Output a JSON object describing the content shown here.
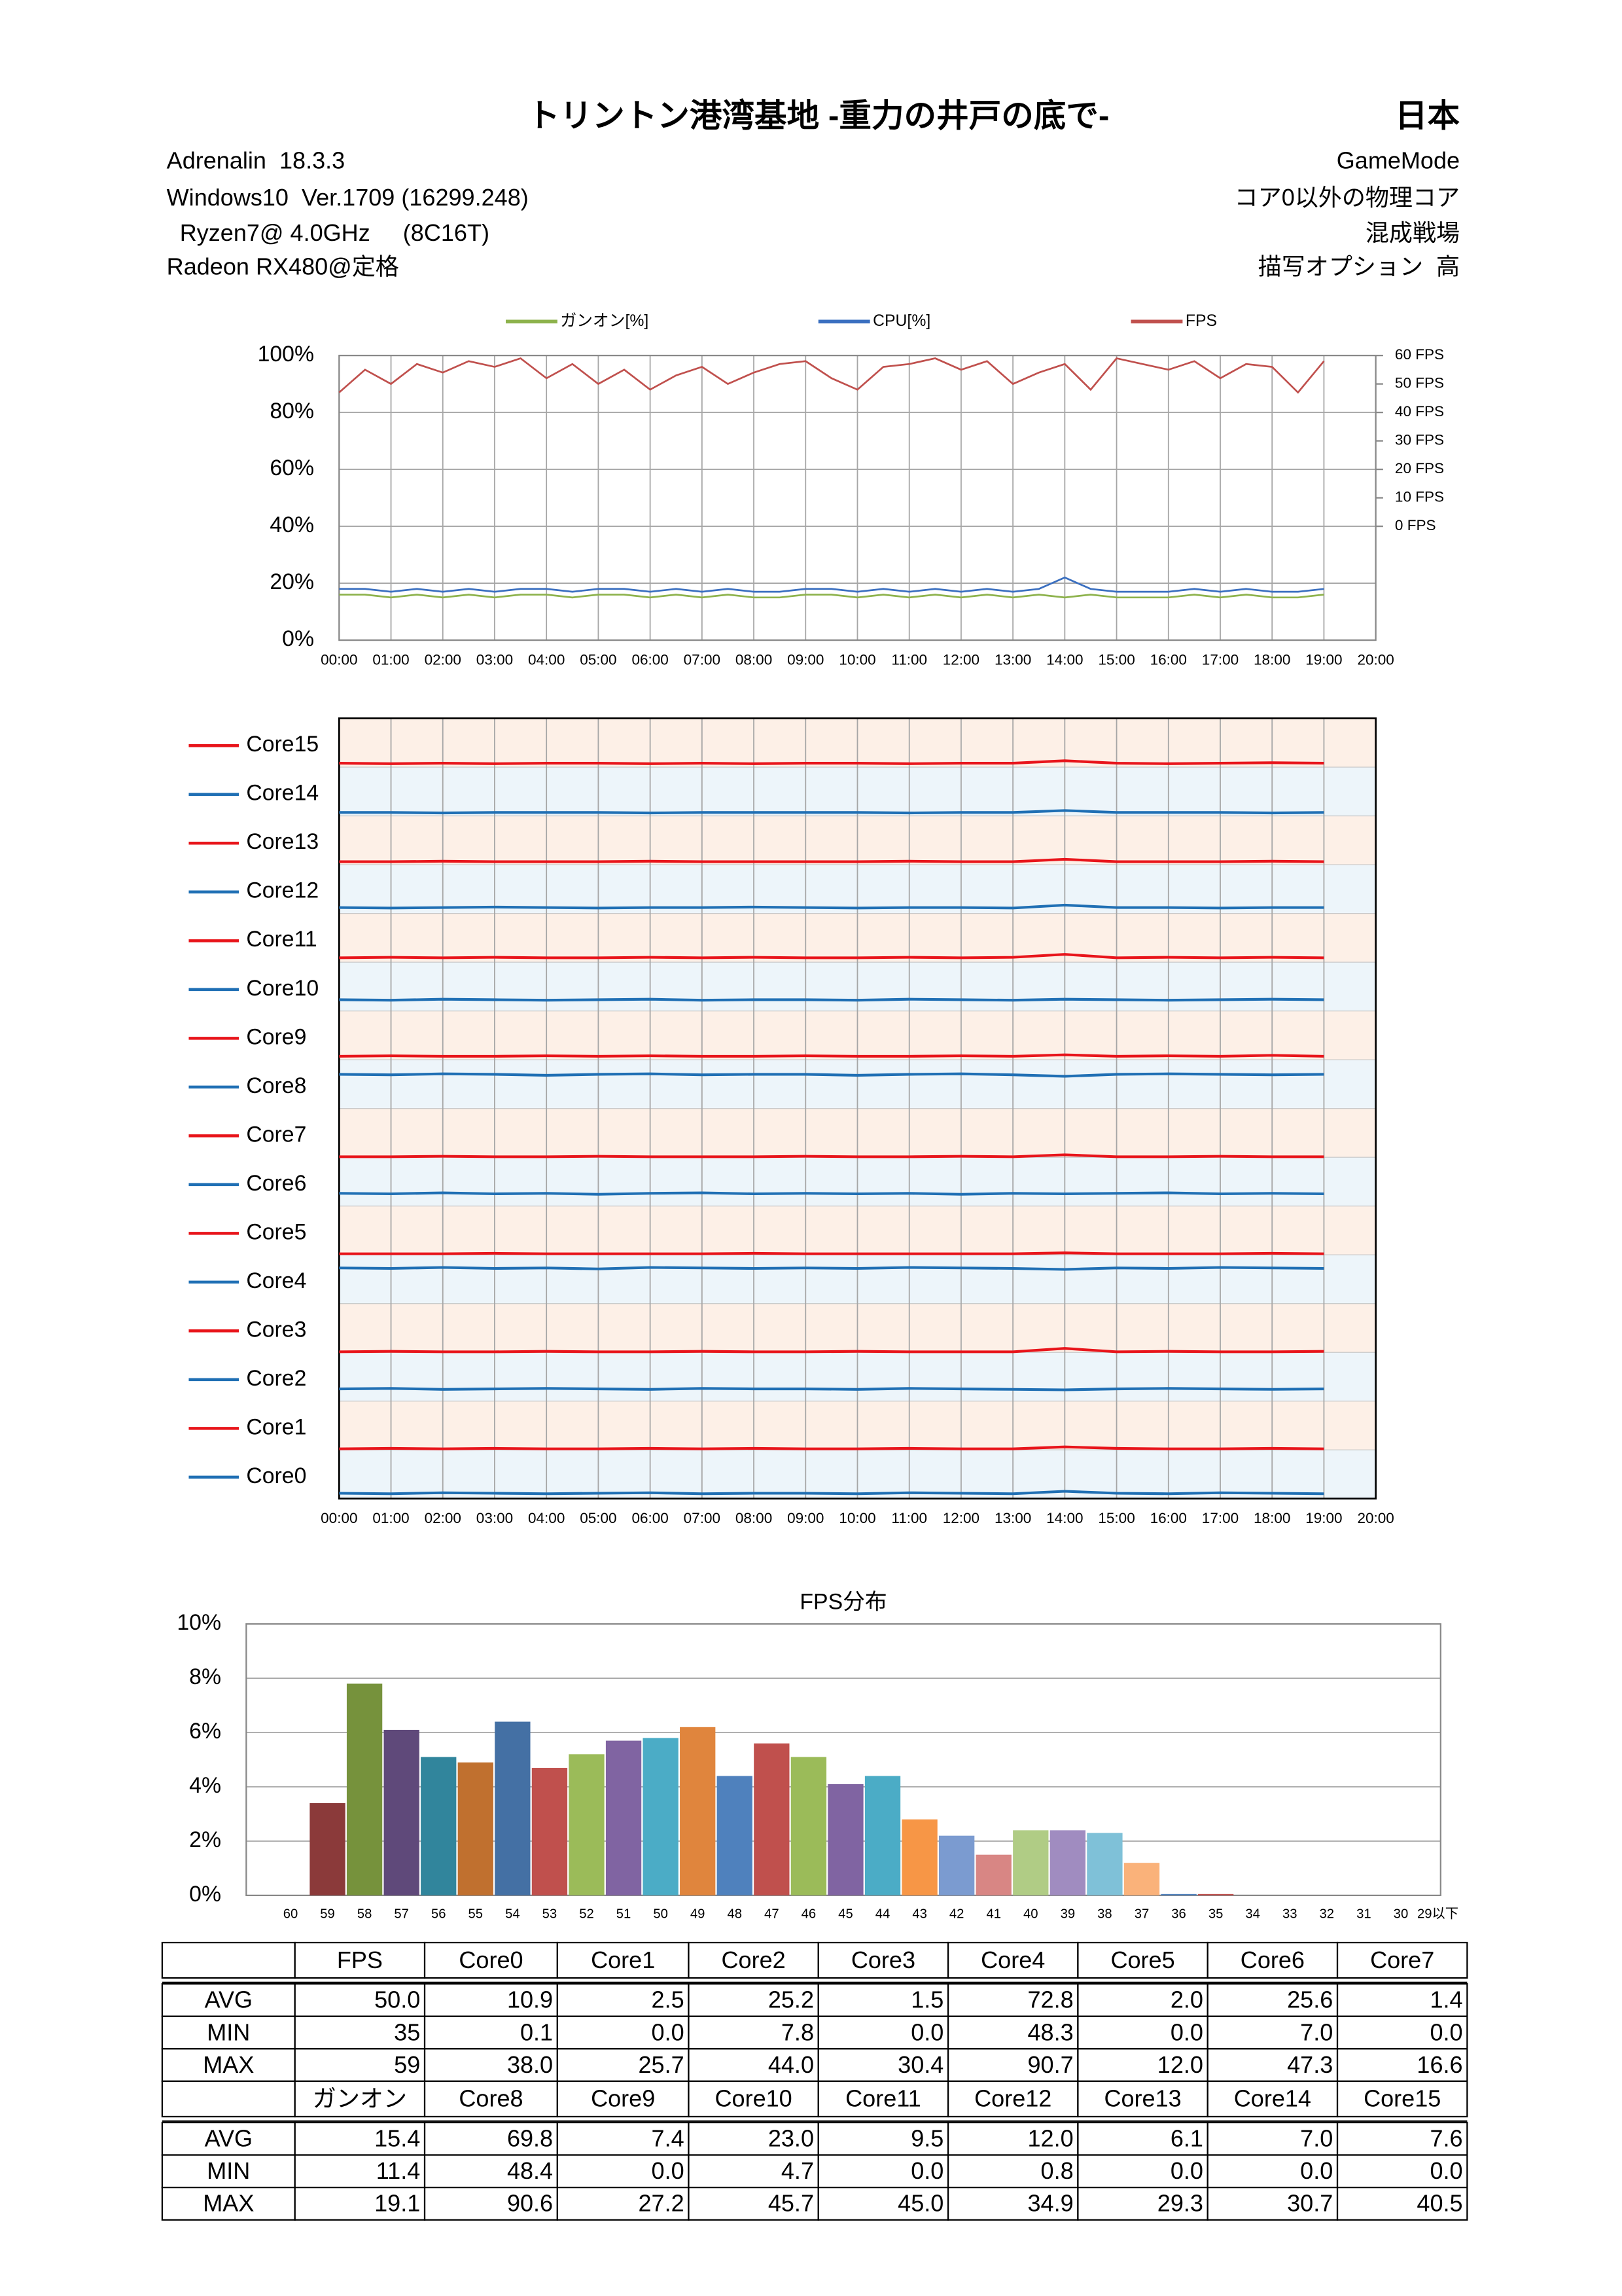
{
  "header": {
    "title": "トリントン港湾基地 -重力の井戸の底で-",
    "region": "日本",
    "left": [
      "Adrenalin  18.3.3",
      "Windows10  Ver.1709 (16299.248)",
      "  Ryzen7@ 4.0GHz     (8C16T)",
      "Radeon RX480@定格"
    ],
    "right": [
      "GameMode",
      "コア0以外の物理コア",
      "混成戦場",
      "描写オプション  高"
    ]
  },
  "chart_data": [
    {
      "type": "line",
      "grid": true,
      "xlim": [
        0,
        20
      ],
      "xticks": [
        {
          "value": 0,
          "label": "00:00"
        },
        {
          "value": 1,
          "label": "01:00"
        },
        {
          "value": 2,
          "label": "02:00"
        },
        {
          "value": 3,
          "label": "03:00"
        },
        {
          "value": 4,
          "label": "04:00"
        },
        {
          "value": 5,
          "label": "05:00"
        },
        {
          "value": 6,
          "label": "06:00"
        },
        {
          "value": 7,
          "label": "07:00"
        },
        {
          "value": 8,
          "label": "08:00"
        },
        {
          "value": 9,
          "label": "09:00"
        },
        {
          "value": 10,
          "label": "10:00"
        },
        {
          "value": 11,
          "label": "11:00"
        },
        {
          "value": 12,
          "label": "12:00"
        },
        {
          "value": 13,
          "label": "13:00"
        },
        {
          "value": 14,
          "label": "14:00"
        },
        {
          "value": 15,
          "label": "15:00"
        },
        {
          "value": 16,
          "label": "16:00"
        },
        {
          "value": 17,
          "label": "17:00"
        },
        {
          "value": 18,
          "label": "18:00"
        },
        {
          "value": 19,
          "label": "19:00"
        },
        {
          "value": 20,
          "label": "20:00"
        }
      ],
      "ylim": [
        0,
        100
      ],
      "yticks": [
        {
          "value": 0,
          "label": "0%"
        },
        {
          "value": 20,
          "label": "20%"
        },
        {
          "value": 40,
          "label": "40%"
        },
        {
          "value": 60,
          "label": "60%"
        },
        {
          "value": 80,
          "label": "80%"
        },
        {
          "value": 100,
          "label": "100%"
        }
      ],
      "y2lim": [
        -40,
        60
      ],
      "y2ticks": [
        {
          "value": 0,
          "label": "0 FPS"
        },
        {
          "value": 10,
          "label": "10 FPS"
        },
        {
          "value": 20,
          "label": "20 FPS"
        },
        {
          "value": 30,
          "label": "30 FPS"
        },
        {
          "value": 40,
          "label": "40 FPS"
        },
        {
          "value": 50,
          "label": "50 FPS"
        },
        {
          "value": 60,
          "label": "60 FPS"
        }
      ],
      "x": [
        0,
        0.5,
        1,
        1.5,
        2,
        2.5,
        3,
        3.5,
        4,
        4.5,
        5,
        5.5,
        6,
        6.5,
        7,
        7.5,
        8,
        8.5,
        9,
        9.5,
        10,
        10.5,
        11,
        11.5,
        12,
        12.5,
        13,
        13.5,
        14,
        14.5,
        15,
        15.5,
        16,
        16.5,
        17,
        17.5,
        18,
        18.5,
        19
      ],
      "series": [
        {
          "name": "ガンオン[%]",
          "color": "#8db24c",
          "values": [
            16,
            16,
            15,
            16,
            15,
            16,
            15,
            16,
            16,
            15,
            16,
            16,
            15,
            16,
            15,
            16,
            15,
            15,
            16,
            16,
            15,
            16,
            15,
            16,
            15,
            16,
            15,
            16,
            15,
            16,
            15,
            15,
            15,
            16,
            15,
            16,
            15,
            15,
            16
          ]
        },
        {
          "name": "CPU[%]",
          "color": "#3a6fc0",
          "values": [
            18,
            18,
            17,
            18,
            17,
            18,
            17,
            18,
            18,
            17,
            18,
            18,
            17,
            18,
            17,
            18,
            17,
            17,
            18,
            18,
            17,
            18,
            17,
            18,
            17,
            18,
            17,
            18,
            22,
            18,
            17,
            17,
            17,
            18,
            17,
            18,
            17,
            17,
            18
          ]
        },
        {
          "name": "FPS",
          "color": "#c0504d",
          "axis": "y2",
          "values": [
            47,
            55,
            50,
            57,
            54,
            58,
            56,
            59,
            52,
            57,
            50,
            55,
            48,
            53,
            56,
            50,
            54,
            57,
            58,
            52,
            48,
            56,
            57,
            59,
            55,
            58,
            50,
            54,
            57,
            48,
            59,
            57,
            55,
            58,
            52,
            57,
            56,
            47,
            58
          ]
        }
      ]
    },
    {
      "type": "strip",
      "xlim": [
        0,
        20
      ],
      "xticks": [
        {
          "value": 0,
          "label": "00:00"
        },
        {
          "value": 1,
          "label": "01:00"
        },
        {
          "value": 2,
          "label": "02:00"
        },
        {
          "value": 3,
          "label": "03:00"
        },
        {
          "value": 4,
          "label": "04:00"
        },
        {
          "value": 5,
          "label": "05:00"
        },
        {
          "value": 6,
          "label": "06:00"
        },
        {
          "value": 7,
          "label": "07:00"
        },
        {
          "value": 8,
          "label": "08:00"
        },
        {
          "value": 9,
          "label": "09:00"
        },
        {
          "value": 10,
          "label": "10:00"
        },
        {
          "value": 11,
          "label": "11:00"
        },
        {
          "value": 12,
          "label": "12:00"
        },
        {
          "value": 13,
          "label": "13:00"
        },
        {
          "value": 14,
          "label": "14:00"
        },
        {
          "value": 15,
          "label": "15:00"
        },
        {
          "value": 16,
          "label": "16:00"
        },
        {
          "value": 17,
          "label": "17:00"
        },
        {
          "value": 18,
          "label": "18:00"
        },
        {
          "value": 19,
          "label": "19:00"
        },
        {
          "value": 20,
          "label": "20:00"
        }
      ],
      "ylim": [
        0,
        100
      ],
      "x": [
        0,
        1,
        2,
        3,
        4,
        5,
        6,
        7,
        8,
        9,
        10,
        11,
        12,
        13,
        14,
        15,
        16,
        17,
        18,
        19
      ],
      "series": [
        {
          "name": "Core0",
          "color": "#1f6fb4",
          "values": [
            11,
            10,
            12,
            11,
            10,
            11,
            12,
            10,
            11,
            11,
            10,
            12,
            11,
            10,
            15,
            11,
            10,
            12,
            11,
            10
          ]
        },
        {
          "name": "Core1",
          "color": "#e8141a",
          "values": [
            2,
            3,
            2,
            3,
            2,
            2,
            3,
            2,
            3,
            2,
            2,
            3,
            2,
            2,
            6,
            3,
            2,
            2,
            3,
            2
          ]
        },
        {
          "name": "Core2",
          "color": "#1f6fb4",
          "values": [
            25,
            26,
            24,
            25,
            26,
            25,
            24,
            26,
            25,
            25,
            24,
            26,
            25,
            24,
            23,
            25,
            26,
            25,
            24,
            25
          ]
        },
        {
          "name": "Core3",
          "color": "#e8141a",
          "values": [
            1,
            2,
            1,
            1,
            2,
            1,
            1,
            2,
            1,
            1,
            2,
            1,
            1,
            1,
            8,
            1,
            2,
            1,
            1,
            2
          ]
        },
        {
          "name": "Core4",
          "color": "#1f6fb4",
          "values": [
            73,
            72,
            74,
            72,
            73,
            71,
            74,
            73,
            72,
            73,
            72,
            74,
            73,
            72,
            70,
            73,
            72,
            74,
            73,
            72
          ]
        },
        {
          "name": "Core5",
          "color": "#e8141a",
          "values": [
            2,
            2,
            2,
            3,
            2,
            2,
            2,
            2,
            3,
            2,
            2,
            2,
            2,
            2,
            4,
            2,
            2,
            2,
            3,
            2
          ]
        },
        {
          "name": "Core6",
          "color": "#1f6fb4",
          "values": [
            26,
            25,
            27,
            25,
            26,
            24,
            26,
            27,
            25,
            26,
            25,
            26,
            24,
            26,
            25,
            26,
            27,
            25,
            26,
            25
          ]
        },
        {
          "name": "Core7",
          "color": "#e8141a",
          "values": [
            1,
            1,
            2,
            1,
            1,
            2,
            1,
            1,
            1,
            2,
            1,
            1,
            2,
            1,
            5,
            1,
            1,
            2,
            1,
            1
          ]
        },
        {
          "name": "Core8",
          "color": "#1f6fb4",
          "values": [
            70,
            69,
            71,
            70,
            68,
            70,
            71,
            69,
            70,
            70,
            68,
            70,
            71,
            69,
            66,
            70,
            71,
            70,
            69,
            70
          ]
        },
        {
          "name": "Core9",
          "color": "#e8141a",
          "values": [
            7,
            8,
            7,
            7,
            8,
            7,
            8,
            7,
            7,
            8,
            7,
            7,
            8,
            7,
            10,
            7,
            8,
            7,
            9,
            7
          ]
        },
        {
          "name": "Core10",
          "color": "#1f6fb4",
          "values": [
            23,
            22,
            24,
            23,
            22,
            23,
            24,
            22,
            23,
            23,
            22,
            24,
            23,
            22,
            24,
            23,
            22,
            23,
            24,
            23
          ]
        },
        {
          "name": "Core11",
          "color": "#e8141a",
          "values": [
            9,
            10,
            9,
            10,
            9,
            9,
            10,
            9,
            10,
            9,
            9,
            10,
            9,
            10,
            16,
            9,
            10,
            9,
            10,
            9
          ]
        },
        {
          "name": "Core12",
          "color": "#1f6fb4",
          "values": [
            12,
            11,
            12,
            13,
            12,
            11,
            12,
            12,
            13,
            12,
            11,
            12,
            12,
            11,
            17,
            12,
            12,
            11,
            12,
            12
          ]
        },
        {
          "name": "Core13",
          "color": "#e8141a",
          "values": [
            6,
            6,
            7,
            6,
            6,
            6,
            7,
            6,
            6,
            6,
            6,
            7,
            6,
            6,
            11,
            6,
            6,
            6,
            7,
            6
          ]
        },
        {
          "name": "Core14",
          "color": "#1f6fb4",
          "values": [
            7,
            7,
            6,
            7,
            7,
            7,
            6,
            7,
            7,
            7,
            7,
            6,
            7,
            7,
            11,
            7,
            7,
            7,
            6,
            7
          ]
        },
        {
          "name": "Core15",
          "color": "#e8141a",
          "values": [
            8,
            7,
            8,
            7,
            8,
            8,
            7,
            8,
            7,
            8,
            8,
            7,
            8,
            8,
            13,
            8,
            7,
            8,
            9,
            8
          ]
        }
      ]
    },
    {
      "type": "bar",
      "title": "FPS分布",
      "grid": true,
      "categories": [
        "60",
        "59",
        "58",
        "57",
        "56",
        "55",
        "54",
        "53",
        "52",
        "51",
        "50",
        "49",
        "48",
        "47",
        "46",
        "45",
        "44",
        "43",
        "42",
        "41",
        "40",
        "39",
        "38",
        "37",
        "36",
        "35",
        "34",
        "33",
        "32",
        "31",
        "30",
        "29以下"
      ],
      "values": [
        0,
        3.4,
        7.8,
        6.1,
        5.1,
        4.9,
        6.4,
        4.7,
        5.2,
        5.7,
        5.8,
        6.2,
        4.4,
        5.6,
        5.1,
        4.1,
        4.4,
        2.8,
        2.2,
        1.5,
        2.4,
        2.4,
        2.3,
        1.2,
        0.05,
        0.05,
        0,
        0,
        0,
        0,
        0,
        0
      ],
      "colors": [
        "#4f81bd",
        "#8b3a3a",
        "#76923c",
        "#5f497a",
        "#31859c",
        "#c0702f",
        "#4470a4",
        "#c0504d",
        "#9bbb59",
        "#8064a2",
        "#4bacc6",
        "#e0853d",
        "#4f81bd",
        "#c0504d",
        "#9bbb59",
        "#8064a2",
        "#4bacc6",
        "#f79646",
        "#7b9bd0",
        "#d88684",
        "#b0cc85",
        "#a08cc0",
        "#7fc1d8",
        "#fab27a",
        "#4f81bd",
        "#c0504d",
        "#9bbb59",
        "#8064a2",
        "#4bacc6",
        "#f79646",
        "#4f81bd",
        "#c0504d"
      ],
      "ylim": [
        0,
        10
      ],
      "yticks": [
        {
          "value": 0,
          "label": "0%"
        },
        {
          "value": 2,
          "label": "2%"
        },
        {
          "value": 4,
          "label": "4%"
        },
        {
          "value": 6,
          "label": "6%"
        },
        {
          "value": 8,
          "label": "8%"
        },
        {
          "value": 10,
          "label": "10%"
        }
      ]
    }
  ],
  "table": {
    "sections": [
      {
        "columns": [
          "FPS",
          "Core0",
          "Core1",
          "Core2",
          "Core3",
          "Core4",
          "Core5",
          "Core6",
          "Core7"
        ],
        "rows": [
          {
            "label": "AVG",
            "cells": [
              "50.0",
              "10.9",
              "2.5",
              "25.2",
              "1.5",
              "72.8",
              "2.0",
              "25.6",
              "1.4"
            ]
          },
          {
            "label": "MIN",
            "cells": [
              "35",
              "0.1",
              "0.0",
              "7.8",
              "0.0",
              "48.3",
              "0.0",
              "7.0",
              "0.0"
            ]
          },
          {
            "label": "MAX",
            "cells": [
              "59",
              "38.0",
              "25.7",
              "44.0",
              "30.4",
              "90.7",
              "12.0",
              "47.3",
              "16.6"
            ]
          }
        ]
      },
      {
        "columns": [
          "ガンオン",
          "Core8",
          "Core9",
          "Core10",
          "Core11",
          "Core12",
          "Core13",
          "Core14",
          "Core15"
        ],
        "rows": [
          {
            "label": "AVG",
            "cells": [
              "15.4",
              "69.8",
              "7.4",
              "23.0",
              "9.5",
              "12.0",
              "6.1",
              "7.0",
              "7.6"
            ]
          },
          {
            "label": "MIN",
            "cells": [
              "11.4",
              "48.4",
              "0.0",
              "4.7",
              "0.0",
              "0.8",
              "0.0",
              "0.0",
              "0.0"
            ]
          },
          {
            "label": "MAX",
            "cells": [
              "19.1",
              "90.6",
              "27.2",
              "45.7",
              "45.0",
              "34.9",
              "29.3",
              "30.7",
              "40.5"
            ]
          }
        ]
      }
    ]
  }
}
